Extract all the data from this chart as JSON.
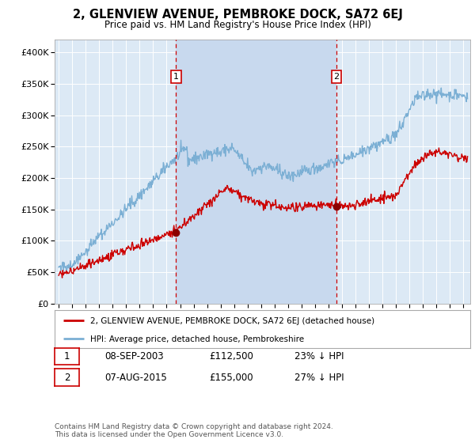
{
  "title": "2, GLENVIEW AVENUE, PEMBROKE DOCK, SA72 6EJ",
  "subtitle": "Price paid vs. HM Land Registry's House Price Index (HPI)",
  "background_color": "#ffffff",
  "plot_bg_color": "#dce9f5",
  "hpi_color": "#7bafd4",
  "price_color": "#cc0000",
  "shade_color": "#c8d9ee",
  "ylim": [
    0,
    420000
  ],
  "yticks": [
    0,
    50000,
    100000,
    150000,
    200000,
    250000,
    300000,
    350000,
    400000
  ],
  "ytick_labels": [
    "£0",
    "£50K",
    "£100K",
    "£150K",
    "£200K",
    "£250K",
    "£300K",
    "£350K",
    "£400K"
  ],
  "xmin": 1994.7,
  "xmax": 2025.5,
  "marker1_x": 2003.69,
  "marker1_y": 112500,
  "marker1_label": "1",
  "marker1_date": "08-SEP-2003",
  "marker1_price": "£112,500",
  "marker1_hpi": "23% ↓ HPI",
  "marker2_x": 2015.59,
  "marker2_y": 155000,
  "marker2_label": "2",
  "marker2_date": "07-AUG-2015",
  "marker2_price": "£155,000",
  "marker2_hpi": "27% ↓ HPI",
  "legend_line1": "2, GLENVIEW AVENUE, PEMBROKE DOCK, SA72 6EJ (detached house)",
  "legend_line2": "HPI: Average price, detached house, Pembrokeshire",
  "footer": "Contains HM Land Registry data © Crown copyright and database right 2024.\nThis data is licensed under the Open Government Licence v3.0."
}
